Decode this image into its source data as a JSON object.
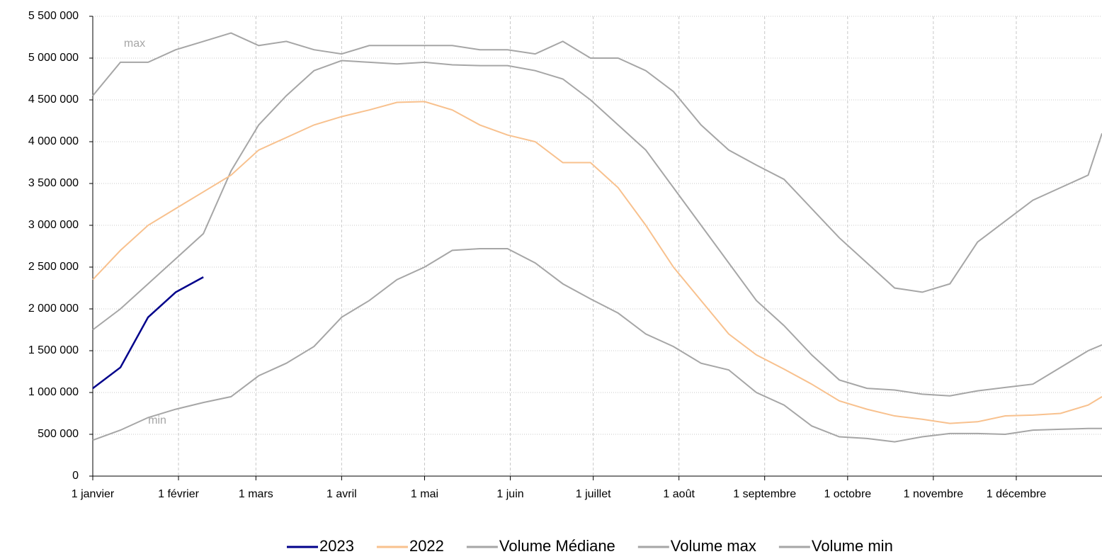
{
  "chart_data": {
    "type": "line",
    "annotations": [
      "max",
      "min"
    ],
    "x": [
      0,
      10,
      20,
      30,
      40,
      50,
      60,
      70,
      80,
      90,
      100,
      110,
      120,
      130,
      140,
      150,
      160,
      170,
      180,
      190,
      200,
      210,
      220,
      230,
      240,
      250,
      260,
      270,
      280,
      290,
      300,
      310,
      320,
      330,
      340,
      350,
      360,
      365
    ],
    "xlim": [
      0,
      365
    ],
    "xticks": [
      {
        "value": 0,
        "label": "1 janvier"
      },
      {
        "value": 31,
        "label": "1 février"
      },
      {
        "value": 59,
        "label": "1 mars"
      },
      {
        "value": 90,
        "label": "1 avril"
      },
      {
        "value": 120,
        "label": "1 mai"
      },
      {
        "value": 151,
        "label": "1 juin"
      },
      {
        "value": 181,
        "label": "1 juillet"
      },
      {
        "value": 212,
        "label": "1 août"
      },
      {
        "value": 243,
        "label": "1 septembre"
      },
      {
        "value": 273,
        "label": "1 octobre"
      },
      {
        "value": 304,
        "label": "1 novembre"
      },
      {
        "value": 334,
        "label": "1 décembre"
      }
    ],
    "ylim": [
      0,
      5500000
    ],
    "yticks": [
      0,
      {
        "value": 500000,
        "label": "500 000"
      },
      {
        "value": 1000000,
        "label": "1 000 000"
      },
      {
        "value": 1500000,
        "label": "1 500 000"
      },
      {
        "value": 2000000,
        "label": "2 000 000"
      },
      {
        "value": 2500000,
        "label": "2 500 000"
      },
      {
        "value": 3000000,
        "label": "3 000 000"
      },
      {
        "value": 3500000,
        "label": "3 500 000"
      },
      {
        "value": 4000000,
        "label": "4 000 000"
      },
      {
        "value": 4500000,
        "label": "4 500 000"
      },
      {
        "value": 5000000,
        "label": "5 000 000"
      },
      {
        "value": 5500000,
        "label": "5 500 000"
      }
    ],
    "grid": true,
    "legend": "bottom",
    "series": [
      {
        "name": "2023",
        "color": "#00008b",
        "values": [
          1050000,
          1300000,
          1900000,
          2200000,
          2380000,
          null,
          null,
          null,
          null,
          null,
          null,
          null,
          null,
          null,
          null,
          null,
          null,
          null,
          null,
          null,
          null,
          null,
          null,
          null,
          null,
          null,
          null,
          null,
          null,
          null,
          null,
          null,
          null,
          null,
          null,
          null,
          null,
          null
        ]
      },
      {
        "name": "2022",
        "color": "#f8c18e",
        "values": [
          2350000,
          2700000,
          3000000,
          3200000,
          3400000,
          3600000,
          3900000,
          4050000,
          4200000,
          4300000,
          4380000,
          4470000,
          4480000,
          4380000,
          4200000,
          4080000,
          4000000,
          3750000,
          3750000,
          3450000,
          3000000,
          2500000,
          2100000,
          1700000,
          1450000,
          1280000,
          1100000,
          900000,
          800000,
          720000,
          680000,
          630000,
          650000,
          720000,
          730000,
          750000,
          850000,
          950000
        ]
      },
      {
        "name": "Volume Médiane",
        "color": "#a6a6a6",
        "values": [
          1750000,
          2000000,
          2300000,
          2600000,
          2900000,
          3650000,
          4200000,
          4550000,
          4850000,
          4970000,
          4950000,
          4930000,
          4950000,
          4920000,
          4910000,
          4910000,
          4850000,
          4750000,
          4500000,
          4200000,
          3900000,
          3450000,
          3000000,
          2550000,
          2100000,
          1800000,
          1450000,
          1150000,
          1050000,
          1030000,
          980000,
          960000,
          1020000,
          1060000,
          1100000,
          1300000,
          1500000,
          1570000
        ]
      },
      {
        "name": "Volume max",
        "color": "#a6a6a6",
        "values": [
          4550000,
          4950000,
          4950000,
          5100000,
          5200000,
          5300000,
          5150000,
          5200000,
          5100000,
          5050000,
          5150000,
          5150000,
          5150000,
          5150000,
          5100000,
          5100000,
          5050000,
          5200000,
          5000000,
          5000000,
          4850000,
          4600000,
          4200000,
          3900000,
          3720000,
          3550000,
          3200000,
          2850000,
          2550000,
          2250000,
          2200000,
          2300000,
          2800000,
          3050000,
          3300000,
          3450000,
          3600000,
          4100000
        ]
      },
      {
        "name": "Volume min",
        "color": "#a6a6a6",
        "values": [
          430000,
          550000,
          700000,
          800000,
          880000,
          950000,
          1200000,
          1350000,
          1550000,
          1900000,
          2100000,
          2350000,
          2500000,
          2700000,
          2720000,
          2720000,
          2550000,
          2300000,
          2120000,
          1950000,
          1700000,
          1550000,
          1350000,
          1270000,
          1000000,
          850000,
          600000,
          470000,
          450000,
          410000,
          470000,
          510000,
          510000,
          500000,
          550000,
          560000,
          570000,
          570000
        ]
      }
    ]
  }
}
